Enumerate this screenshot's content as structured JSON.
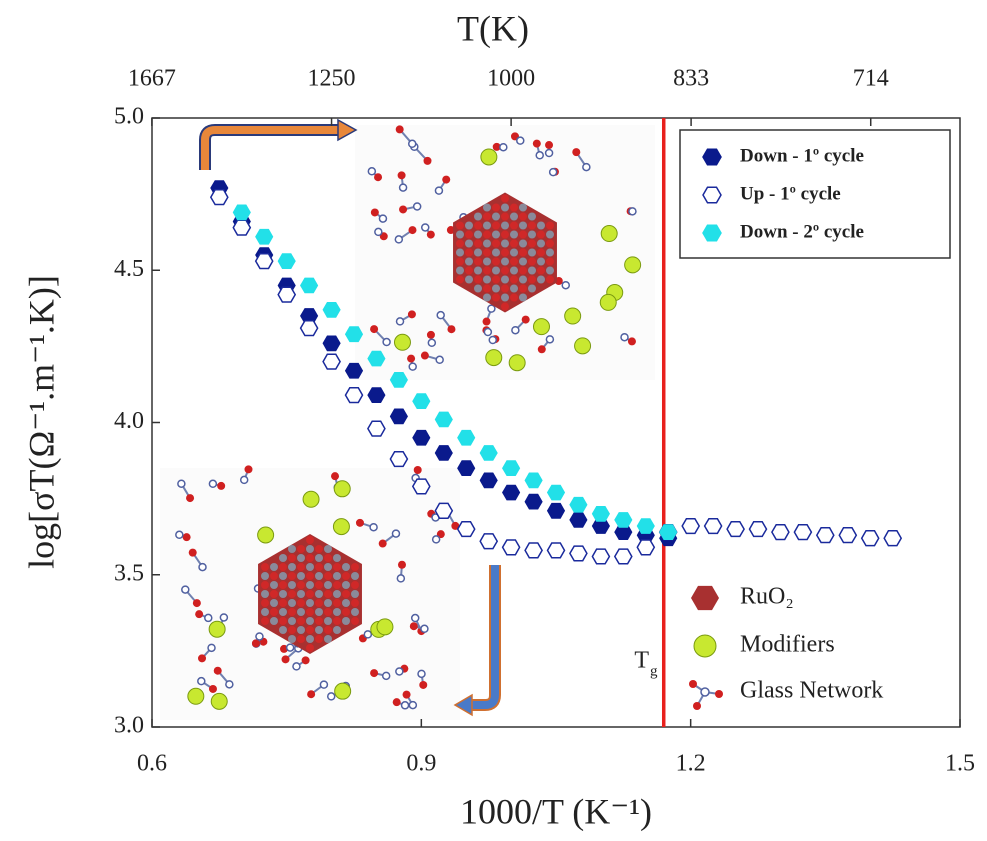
{
  "chart_data": {
    "type": "scatter",
    "x2label": "T(K)",
    "xlabel": "1000/T (K⁻¹)",
    "ylabel": "log[σT(Ω⁻¹.m⁻¹.K)]",
    "xlim": [
      0.6,
      1.5
    ],
    "xticks": [
      0.6,
      0.9,
      1.2,
      1.5
    ],
    "ylim": [
      3,
      5
    ],
    "yticks": [
      {
        "value": 3,
        "label": "3.0"
      },
      {
        "value": 3.5,
        "label": "3.5"
      },
      {
        "value": 4,
        "label": "4.0"
      },
      {
        "value": 4.5,
        "label": "4.5"
      },
      {
        "value": 5,
        "label": "5.0"
      }
    ],
    "x2ticks": [
      1667,
      1250,
      1000,
      833,
      714
    ],
    "legend": "upper right",
    "series": [
      {
        "name": "Down - 1º cycle",
        "color": "#0a1a8c",
        "filled": true,
        "x": [
          0.675,
          0.7,
          0.725,
          0.75,
          0.775,
          0.8,
          0.825,
          0.85,
          0.875,
          0.9,
          0.925,
          0.95,
          0.975,
          1.0,
          1.025,
          1.05,
          1.075,
          1.1,
          1.125,
          1.15,
          1.175
        ],
        "values": [
          4.77,
          4.66,
          4.55,
          4.45,
          4.35,
          4.26,
          4.17,
          4.09,
          4.02,
          3.95,
          3.9,
          3.85,
          3.81,
          3.77,
          3.74,
          3.71,
          3.68,
          3.66,
          3.64,
          3.63,
          3.62
        ]
      },
      {
        "name": "Up - 1º cycle",
        "color": "#1a2a9c",
        "filled": false,
        "x": [
          0.675,
          0.7,
          0.725,
          0.75,
          0.775,
          0.8,
          0.825,
          0.85,
          0.875,
          0.9,
          0.925,
          0.95,
          0.975,
          1.0,
          1.025,
          1.05,
          1.075,
          1.1,
          1.125,
          1.15,
          1.175,
          1.2,
          1.225,
          1.25,
          1.275,
          1.3,
          1.325,
          1.35,
          1.375,
          1.4,
          1.425
        ],
        "values": [
          4.74,
          4.64,
          4.53,
          4.42,
          4.31,
          4.2,
          4.09,
          3.98,
          3.88,
          3.79,
          3.71,
          3.65,
          3.61,
          3.59,
          3.58,
          3.58,
          3.57,
          3.56,
          3.56,
          3.59,
          3.64,
          3.66,
          3.66,
          3.65,
          3.65,
          3.64,
          3.64,
          3.63,
          3.63,
          3.62,
          3.62
        ]
      },
      {
        "name": "Down - 2º cycle",
        "color": "#22e0e8",
        "filled": true,
        "x": [
          0.7,
          0.725,
          0.75,
          0.775,
          0.8,
          0.825,
          0.85,
          0.875,
          0.9,
          0.925,
          0.95,
          0.975,
          1.0,
          1.025,
          1.05,
          1.075,
          1.1,
          1.125,
          1.15,
          1.175
        ],
        "values": [
          4.69,
          4.61,
          4.53,
          4.45,
          4.37,
          4.29,
          4.21,
          4.14,
          4.07,
          4.01,
          3.95,
          3.9,
          3.85,
          3.81,
          3.77,
          3.73,
          3.7,
          3.68,
          3.66,
          3.64
        ]
      }
    ],
    "vline": {
      "x": 1.17,
      "color": "#e8201c",
      "label_main": "T",
      "label_sub": "g"
    },
    "inset_legend": [
      "RuO₂",
      "Modifiers",
      "Glass Network"
    ]
  }
}
